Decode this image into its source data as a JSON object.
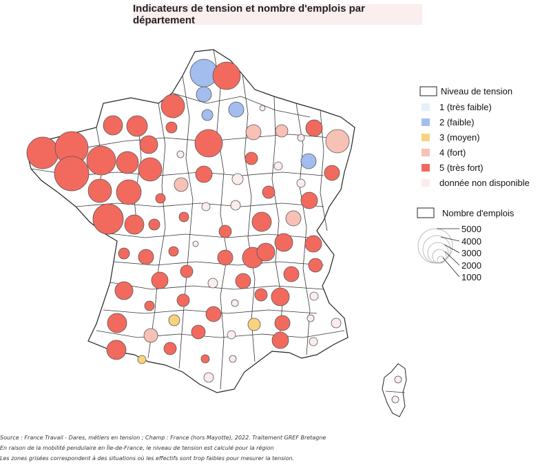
{
  "title": "Indicateurs de tension et nombre d'emplois par département",
  "legend_tension": {
    "title": "Niveau de tension",
    "items": [
      {
        "label": "1 (très faible)",
        "color": "#e6f0fb"
      },
      {
        "label": "2 (faible)",
        "color": "#a3bdee"
      },
      {
        "label": "3 (moyen)",
        "color": "#f9d27e"
      },
      {
        "label": "4 (fort)",
        "color": "#f7c1b6"
      },
      {
        "label": "5 (très fort)",
        "color": "#f26a5e"
      },
      {
        "label": "donnée non disponible",
        "color": "#fcecec"
      }
    ]
  },
  "legend_emplois": {
    "title": "Nombre d'emplois",
    "values": [
      "5000",
      "4000",
      "3000",
      "2000",
      "1000"
    ]
  },
  "source_lines": [
    "Source : France Travail - Dares, métiers en tension ; Champ : France (hors Mayotte), 2022. Traitement GREF Bretagne",
    "En raison de la mobilité pendulaire en Île-de-France, le niveau de tension est calculé pour la région",
    "Les zones grisées correspondent à des situations où les effectifs sont trop faibles pour mesurer la tension."
  ],
  "map_colors": {
    "very_high": "#f26a5e",
    "high": "#f7c1b6",
    "medium": "#f9d27e",
    "low": "#a3bdee",
    "unavailable": "#fcecec",
    "border": "#222222"
  }
}
